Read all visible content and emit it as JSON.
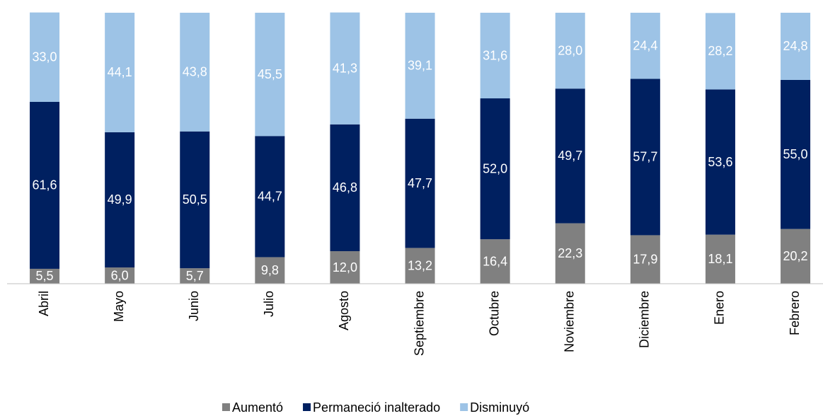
{
  "chart_data": {
    "type": "stacked_bar",
    "categories": [
      "Abril",
      "Mayo",
      "Junio",
      "Julio",
      "Agosto",
      "Septiembre",
      "Octubre",
      "Noviembre",
      "Diciembre",
      "Enero",
      "Febrero"
    ],
    "ylim": [
      0,
      100
    ],
    "series": [
      {
        "name": "Aumentó",
        "color": "#808080",
        "values": [
          5.5,
          6.0,
          5.7,
          9.8,
          12.0,
          13.2,
          16.4,
          22.3,
          17.9,
          18.1,
          20.2
        ],
        "value_labels": [
          "5,5",
          "6,0",
          "5,7",
          "9,8",
          "12,0",
          "13,2",
          "16,4",
          "22,3",
          "17,9",
          "18,1",
          "20,2"
        ]
      },
      {
        "name": "Permaneció inalterado",
        "color": "#002060",
        "values": [
          61.6,
          49.9,
          50.5,
          44.7,
          46.8,
          47.7,
          52.0,
          49.7,
          57.7,
          53.6,
          55.0
        ],
        "value_labels": [
          "61,6",
          "49,9",
          "50,5",
          "44,7",
          "46,8",
          "47,7",
          "52,0",
          "49,7",
          "57,7",
          "53,6",
          "55,0"
        ]
      },
      {
        "name": "Disminuyó",
        "color": "#9dc3e6",
        "values": [
          33.0,
          44.1,
          43.8,
          45.5,
          41.3,
          39.1,
          31.6,
          28.0,
          24.4,
          28.2,
          24.8
        ],
        "value_labels": [
          "33,0",
          "44,1",
          "43,8",
          "45,5",
          "41,3",
          "39,1",
          "31,6",
          "28,0",
          "24,4",
          "28,2",
          "24,8"
        ]
      }
    ]
  }
}
